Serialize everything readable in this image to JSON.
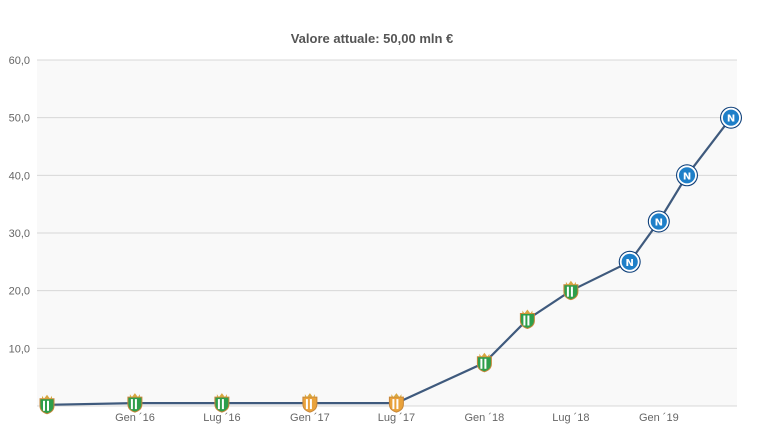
{
  "chart_data": {
    "type": "line",
    "title": "Valore attuale: 50,00 mln €",
    "xlabel": "",
    "ylabel": "",
    "ylim": [
      0,
      60
    ],
    "yticks": [
      0,
      10,
      20,
      30,
      40,
      50,
      60
    ],
    "ytick_labels": [
      "",
      "10,0",
      "20,0",
      "30,0",
      "40,0",
      "50,0",
      "60,0"
    ],
    "xticks": [
      {
        "label": "Gen ´16",
        "date": "2016-01-01"
      },
      {
        "label": "Lug ´16",
        "date": "2016-07-01"
      },
      {
        "label": "Gen ´17",
        "date": "2017-01-01"
      },
      {
        "label": "Lug ´17",
        "date": "2017-07-01"
      },
      {
        "label": "Gen ´18",
        "date": "2018-01-01"
      },
      {
        "label": "Lug ´18",
        "date": "2018-07-01"
      },
      {
        "label": "Gen ´19",
        "date": "2019-01-01"
      }
    ],
    "grid": true,
    "legend": "none",
    "series": [
      {
        "points": [
          {
            "date": "2015-07-01",
            "value": 0.2,
            "club": "betis"
          },
          {
            "date": "2016-01-01",
            "value": 0.5,
            "club": "betis"
          },
          {
            "date": "2016-07-01",
            "value": 0.5,
            "club": "betis"
          },
          {
            "date": "2017-01-01",
            "value": 0.5,
            "club": "betis-orange"
          },
          {
            "date": "2017-07-01",
            "value": 0.5,
            "club": "betis-orange"
          },
          {
            "date": "2018-01-01",
            "value": 7.5,
            "club": "betis"
          },
          {
            "date": "2018-04-01",
            "value": 15,
            "club": "betis"
          },
          {
            "date": "2018-07-01",
            "value": 20,
            "club": "betis"
          },
          {
            "date": "2018-11-01",
            "value": 25,
            "club": "napoli"
          },
          {
            "date": "2019-01-01",
            "value": 32,
            "club": "napoli"
          },
          {
            "date": "2019-03-01",
            "value": 40,
            "club": "napoli"
          },
          {
            "date": "2019-06-01",
            "value": 50,
            "club": "napoli"
          }
        ]
      }
    ],
    "colors": {
      "line": "#3f5a7d",
      "napoli": "#1e7fc8",
      "betis": "#2e9e4b",
      "betis_orange": "#e9a23b"
    },
    "markers": {
      "napoli": "napoli-badge-icon",
      "betis": "betis-badge-icon",
      "betis-orange": "betis-badge-icon"
    },
    "marker_letters": {
      "napoli": "N"
    }
  }
}
